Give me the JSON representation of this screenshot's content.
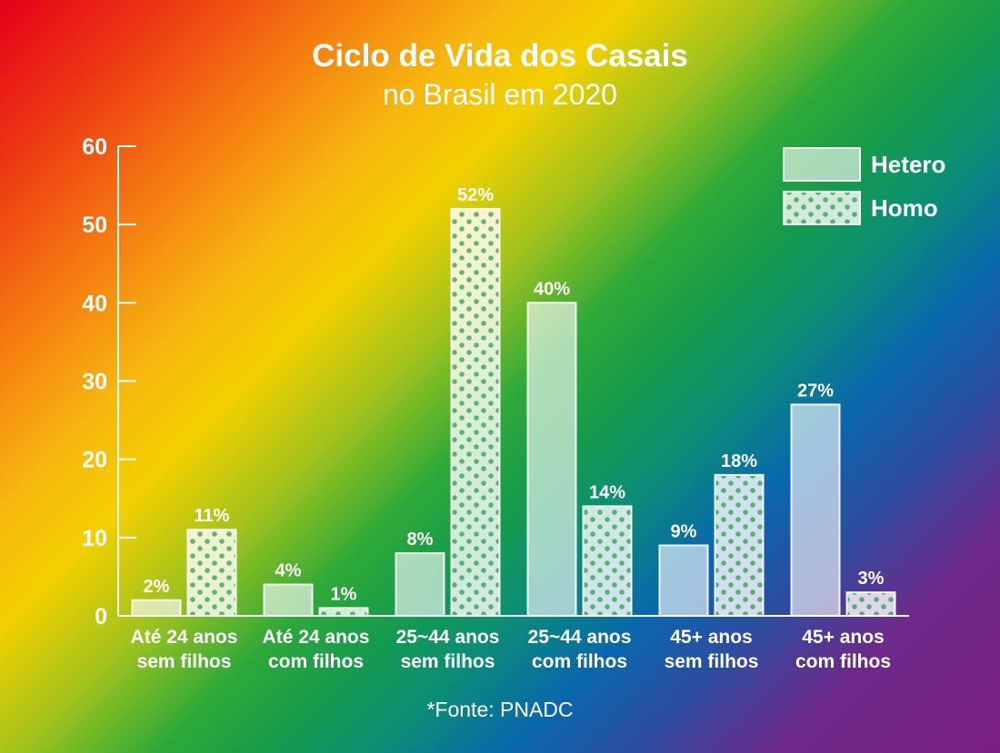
{
  "header": {
    "title": "Ciclo de Vida dos Casais",
    "subtitle": "no Brasil em 2020"
  },
  "footer": {
    "source": "*Fonte: PNADC"
  },
  "chart_data": {
    "type": "bar",
    "title": "Ciclo de Vida dos Casais",
    "subtitle": "no Brasil em 2020",
    "categories": [
      [
        "Até 24 anos",
        "sem filhos"
      ],
      [
        "Até 24 anos",
        "com filhos"
      ],
      [
        "25~44 anos",
        "sem filhos"
      ],
      [
        "25~44 anos",
        "com filhos"
      ],
      [
        "45+ anos",
        "sem filhos"
      ],
      [
        "45+ anos",
        "com filhos"
      ]
    ],
    "series": [
      {
        "name": "Hetero",
        "values": [
          2,
          4,
          8,
          40,
          9,
          27
        ],
        "labels": [
          "2%",
          "4%",
          "8%",
          "40%",
          "9%",
          "27%"
        ],
        "pattern": "solid"
      },
      {
        "name": "Homo",
        "values": [
          11,
          1,
          52,
          14,
          18,
          3
        ],
        "labels": [
          "11%",
          "1%",
          "52%",
          "14%",
          "18%",
          "3%"
        ],
        "pattern": "dotted"
      }
    ],
    "yticks": [
      0,
      10,
      20,
      30,
      40,
      50,
      60
    ],
    "ylim": [
      0,
      60
    ],
    "grid": false,
    "legend": "top-right",
    "xlabel": "",
    "ylabel": ""
  }
}
